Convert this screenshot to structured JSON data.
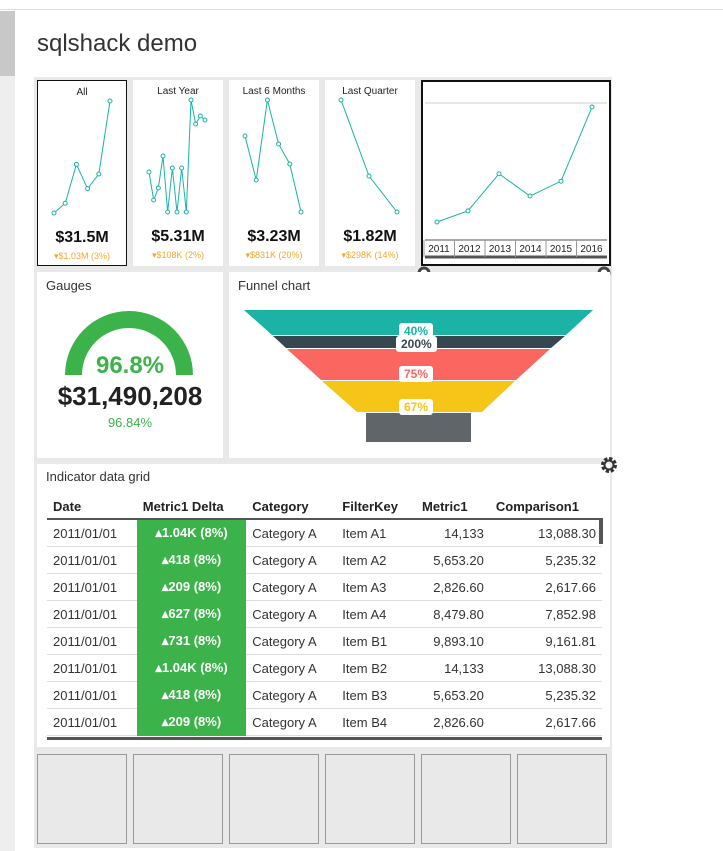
{
  "header": {
    "title": "sqlshack demo"
  },
  "kpi_tiles": [
    {
      "label": "All",
      "value": "$31.5M",
      "delta": "▾$1.03M (3%)",
      "sparkline": [
        2,
        4,
        12,
        7,
        10,
        25
      ]
    },
    {
      "label": "Last Year",
      "value": "$5.31M",
      "delta": "▾$108K (2%)",
      "sparkline": [
        10,
        3,
        6,
        14,
        0,
        11,
        0,
        11,
        0,
        28,
        22,
        24,
        23
      ]
    },
    {
      "label": "Last 6 Months",
      "value": "$3.23M",
      "delta": "▾$831K (20%)",
      "sparkline": [
        19,
        8,
        28,
        17,
        12,
        0
      ]
    },
    {
      "label": "Last Quarter",
      "value": "$1.82M",
      "delta": "▾$298K (14%)",
      "sparkline": [
        28,
        9,
        0
      ]
    }
  ],
  "trend_chart": {
    "x": [
      "2011",
      "2012",
      "2013",
      "2014",
      "2015",
      "2016"
    ],
    "values": [
      0,
      3,
      13,
      7,
      11,
      31
    ]
  },
  "gauge": {
    "title": "Gauges",
    "percent": "96.8%",
    "value": "$31,490,208",
    "comparison": "96.84%"
  },
  "funnel": {
    "title": "Funnel chart",
    "labels": [
      "40%",
      "200%",
      "75%",
      "67%"
    ]
  },
  "grid": {
    "title": "Indicator data grid",
    "columns": [
      "Date",
      "Metric1 Delta",
      "Category",
      "FilterKey",
      "Metric1",
      "Comparison1"
    ],
    "rows": [
      [
        "2011/01/01",
        "▴1.04K (8%)",
        "Category A",
        "Item A1",
        "14,133",
        "13,088.30"
      ],
      [
        "2011/01/01",
        "▴418 (8%)",
        "Category A",
        "Item A2",
        "5,653.20",
        "5,235.32"
      ],
      [
        "2011/01/01",
        "▴209 (8%)",
        "Category A",
        "Item A3",
        "2,826.60",
        "2,617.66"
      ],
      [
        "2011/01/01",
        "▴627 (8%)",
        "Category A",
        "Item A4",
        "8,479.80",
        "7,852.98"
      ],
      [
        "2011/01/01",
        "▴731 (8%)",
        "Category A",
        "Item B1",
        "9,893.10",
        "9,161.81"
      ],
      [
        "2011/01/01",
        "▴1.04K (8%)",
        "Category A",
        "Item B2",
        "14,133",
        "13,088.30"
      ],
      [
        "2011/01/01",
        "▴418 (8%)",
        "Category A",
        "Item B3",
        "5,653.20",
        "5,235.32"
      ],
      [
        "2011/01/01",
        "▴209 (8%)",
        "Category A",
        "Item B4",
        "2,826.60",
        "2,617.66"
      ]
    ]
  }
}
